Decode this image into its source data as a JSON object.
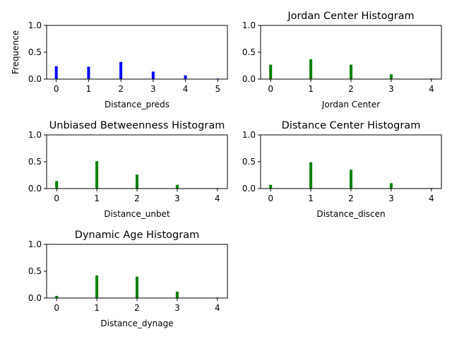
{
  "figure": {
    "ylabel": "Frequence"
  },
  "chart_data": [
    {
      "type": "bar",
      "title": "",
      "xlabel": "Distance_preds",
      "ylabel": "Frequence",
      "color": "#0000ff",
      "x": [
        0,
        1,
        2,
        3,
        4,
        5
      ],
      "values": [
        0.24,
        0.23,
        0.32,
        0.14,
        0.07,
        0.01
      ],
      "xticks": [
        "0",
        "1",
        "2",
        "3",
        "4",
        "5"
      ],
      "xlim": [
        -0.3,
        5.3
      ],
      "ylim": [
        0,
        1.0
      ],
      "yticks": [
        "0.0",
        "0.5",
        "1.0"
      ]
    },
    {
      "type": "bar",
      "title": "Jordan Center Histogram",
      "xlabel": "Jordan Center",
      "color": "#008000",
      "x": [
        0,
        1,
        2,
        3,
        4
      ],
      "values": [
        0.27,
        0.37,
        0.27,
        0.09,
        0.01
      ],
      "xticks": [
        "0",
        "1",
        "2",
        "3",
        "4"
      ],
      "xlim": [
        -0.25,
        4.25
      ],
      "ylim": [
        0,
        1.0
      ],
      "yticks": [
        "0.0",
        "0.5",
        "1.0"
      ]
    },
    {
      "type": "bar",
      "title": "Unbiased Betweenness Histogram",
      "xlabel": "Distance_unbet",
      "color": "#008000",
      "x": [
        0,
        1,
        2,
        3,
        4
      ],
      "values": [
        0.14,
        0.51,
        0.26,
        0.07,
        0.01
      ],
      "xticks": [
        "0",
        "1",
        "2",
        "3",
        "4"
      ],
      "xlim": [
        -0.25,
        4.25
      ],
      "ylim": [
        0,
        1.0
      ],
      "yticks": [
        "0.0",
        "0.5",
        "1.0"
      ]
    },
    {
      "type": "bar",
      "title": "Distance Center Histogram",
      "xlabel": "Distance_discen",
      "color": "#008000",
      "x": [
        0,
        1,
        2,
        3,
        4
      ],
      "values": [
        0.07,
        0.49,
        0.35,
        0.1,
        0.01
      ],
      "xticks": [
        "0",
        "1",
        "2",
        "3",
        "4"
      ],
      "xlim": [
        -0.25,
        4.25
      ],
      "ylim": [
        0,
        1.0
      ],
      "yticks": [
        "0.0",
        "0.5",
        "1.0"
      ]
    },
    {
      "type": "bar",
      "title": "Dynamic Age Histogram",
      "xlabel": "Distance_dynage",
      "color": "#008000",
      "x": [
        0,
        1,
        2,
        3,
        4
      ],
      "values": [
        0.04,
        0.42,
        0.4,
        0.12,
        0.01
      ],
      "xticks": [
        "0",
        "1",
        "2",
        "3",
        "4"
      ],
      "xlim": [
        -0.25,
        4.25
      ],
      "ylim": [
        0,
        1.0
      ],
      "yticks": [
        "0.0",
        "0.5",
        "1.0"
      ]
    }
  ]
}
